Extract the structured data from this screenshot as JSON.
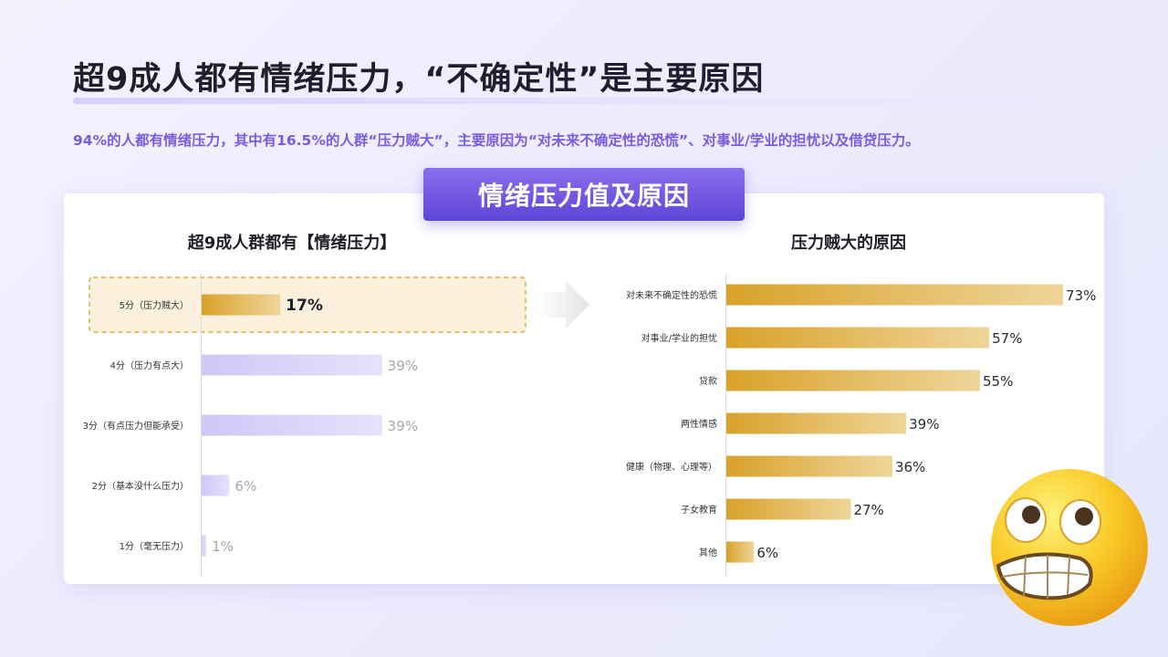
{
  "header": {
    "title": "超9成人都有情绪压力，“不确定性”是主要原因",
    "subtitle": "94%的人都有情绪压力，其中有16.5%的人群“压力贼大”，主要原因为“对未来不确定性的恐慌”、对事业/学业的担忧以及借贷压力。",
    "banner": "情绪压力值及原因"
  },
  "colors": {
    "accent_purple": "#6a4fe0",
    "gold": "#d8a22a",
    "gold_light": "#efd59a",
    "lavender": "#d5cff7"
  },
  "chart_data": [
    {
      "type": "bar",
      "orientation": "horizontal",
      "title": "超9成人群都有【情绪压力】",
      "categories": [
        "5分（压力贼大）",
        "4分（压力有点大）",
        "3分（有点压力但能承受）",
        "2分（基本没什么压力）",
        "1分（毫无压力）"
      ],
      "values": [
        17,
        39,
        39,
        6,
        1
      ],
      "value_labels": [
        "17%",
        "39%",
        "39%",
        "6%",
        "1%"
      ],
      "highlight_index": 0,
      "xlim": [
        0,
        73
      ]
    },
    {
      "type": "bar",
      "orientation": "horizontal",
      "title": "压力贼大的原因",
      "categories": [
        "对未来不确定性的恐慌",
        "对事业/学业的担忧",
        "贷款",
        "两性情感",
        "健康（物理、心理等）",
        "子女教育",
        "其他"
      ],
      "values": [
        73,
        57,
        55,
        39,
        36,
        27,
        6
      ],
      "value_labels": [
        "73%",
        "57%",
        "55%",
        "39%",
        "36%",
        "27%",
        "6%"
      ],
      "xlim": [
        0,
        73
      ]
    }
  ]
}
